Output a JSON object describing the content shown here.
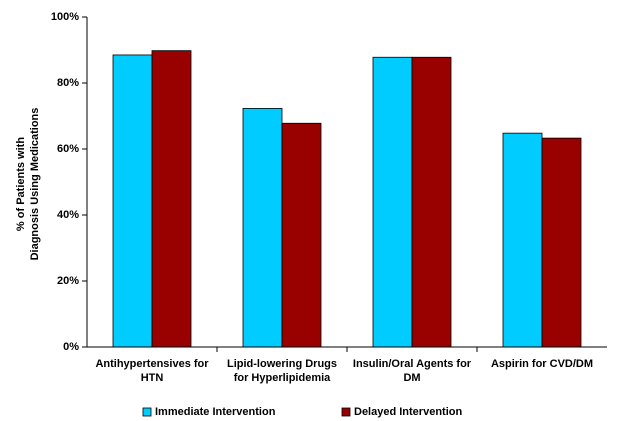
{
  "chart_data": {
    "type": "bar",
    "y_label": "% of Patients with\nDiagnosis Using Medications",
    "categories": [
      "Antihypertensives for\nHTN",
      "Lipid-lowering Drugs\nfor Hyperlipidemia",
      "Insulin/Oral Agents for\nDM",
      "Aspirin for CVD/DM"
    ],
    "series": [
      {
        "name": "Immediate Intervention",
        "color": "#00ccff",
        "values": [
          88.5,
          72.3,
          87.8,
          64.8
        ]
      },
      {
        "name": "Delayed Intervention",
        "color": "#990000",
        "values": [
          89.8,
          67.8,
          87.8,
          63.3
        ]
      }
    ],
    "ylim": [
      0,
      100
    ],
    "yticks": [
      {
        "value": 0,
        "label": "0%"
      },
      {
        "value": 20,
        "label": "20%"
      },
      {
        "value": 40,
        "label": "40%"
      },
      {
        "value": 60,
        "label": "60%"
      },
      {
        "value": 80,
        "label": "80%"
      },
      {
        "value": 100,
        "label": "100%"
      }
    ]
  }
}
